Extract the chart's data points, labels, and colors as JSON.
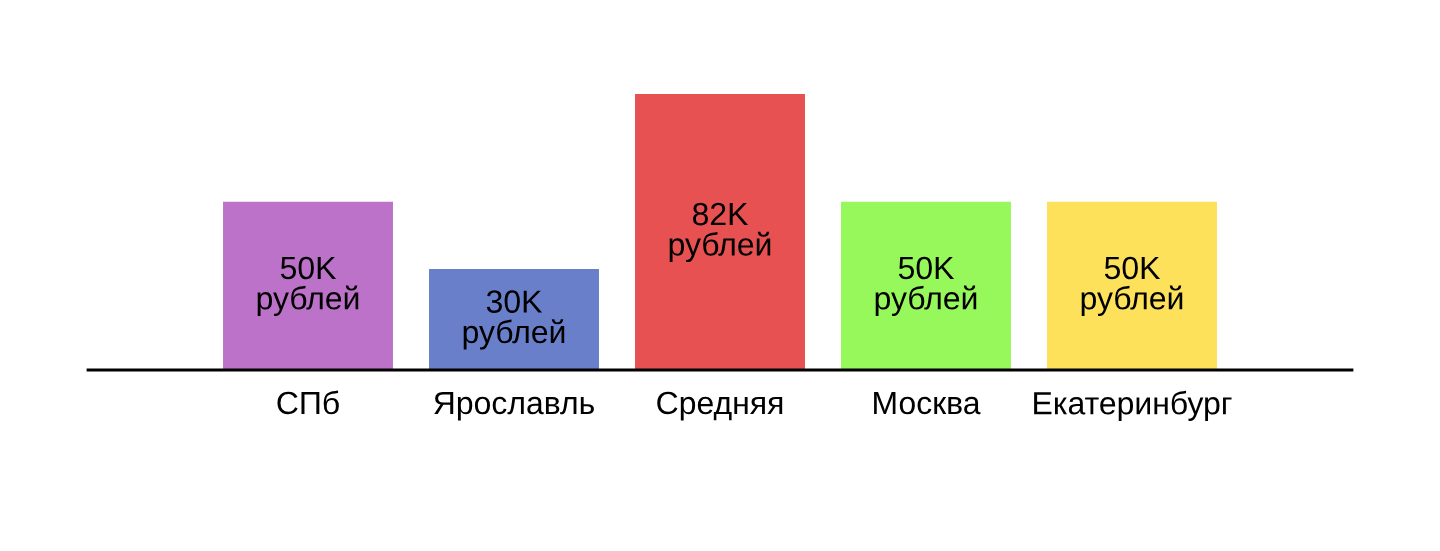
{
  "chart_data": {
    "type": "bar",
    "categories": [
      "СПб",
      "Ярославль",
      "Средняя",
      "Москва",
      "Екатеринбург"
    ],
    "values": [
      50,
      30,
      82,
      50,
      50
    ],
    "colors": [
      "#bc72c9",
      "#6a7fca",
      "#e85151",
      "#97f85b",
      "#fde15b"
    ],
    "value_labels": [
      "50K\nрублей",
      "30K\nрублей",
      "82K\nрублей",
      "50K\nрублей",
      "50K\nрублей"
    ],
    "tick_labels": "x"
  }
}
